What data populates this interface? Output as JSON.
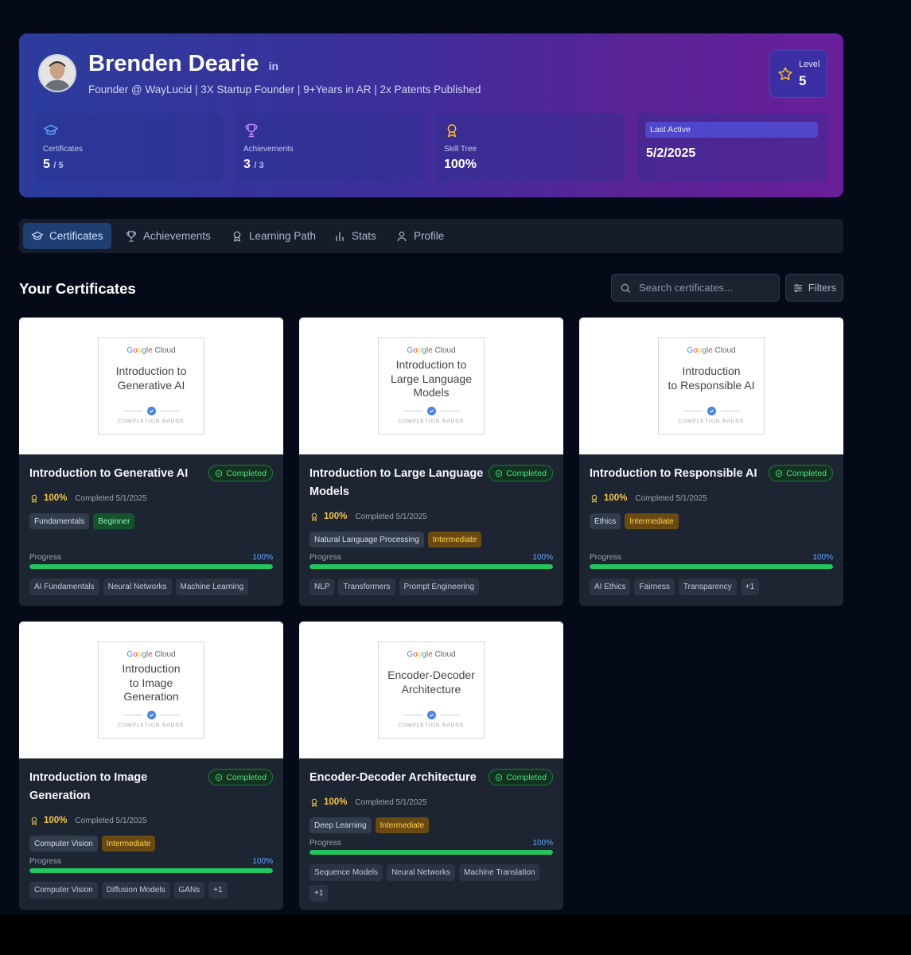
{
  "profile": {
    "name": "Brenden Dearie",
    "tagline": "Founder @ WayLucid | 3X Startup Founder | 9+Years in AR | 2x Patents Published",
    "linkedin_icon": "in",
    "level_label": "Level",
    "level_value": "5"
  },
  "stats": [
    {
      "label": "Certificates",
      "value": "5",
      "total": "/ 5",
      "icon": "graduation-cap-icon"
    },
    {
      "label": "Achievements",
      "value": "3",
      "total": "/ 3",
      "icon": "trophy-icon"
    },
    {
      "label": "Skill Tree",
      "value": "100%",
      "icon": "award-icon"
    },
    {
      "label": "Last Active",
      "value": "5/2/2025"
    }
  ],
  "tabs": [
    {
      "label": "Certificates",
      "icon": "graduation-cap-icon",
      "active": true
    },
    {
      "label": "Achievements",
      "icon": "trophy-icon"
    },
    {
      "label": "Learning Path",
      "icon": "award-icon"
    },
    {
      "label": "Stats",
      "icon": "bar-chart-icon"
    },
    {
      "label": "Profile",
      "icon": "user-icon"
    }
  ],
  "section": {
    "title": "Your Certificates",
    "search_placeholder": "Search certificates...",
    "filters_label": "Filters"
  },
  "badge_common": {
    "google": [
      "G",
      "o",
      "o",
      "g",
      "l",
      "e"
    ],
    "cloud": " Cloud",
    "caption": "COMPLETION BADGE"
  },
  "colors": {
    "google_blue": "#4285F4",
    "google_red": "#EA4335",
    "google_yellow": "#FBBC05",
    "google_green": "#34A853",
    "accent_green": "#22c55e"
  },
  "certificates": [
    {
      "badge_lines": [
        "Introduction to",
        "Generative AI"
      ],
      "title": "Introduction to Generative AI",
      "status": "Completed",
      "percent": "100%",
      "completed": "Completed 5/1/2025",
      "tags": [
        {
          "label": "Fundamentals",
          "kind": "plain"
        },
        {
          "label": "Beginner",
          "kind": "beginner"
        }
      ],
      "progress_label": "Progress",
      "progress_value": "100%",
      "progress_fraction": 1.0,
      "skills": [
        "AI Fundamentals",
        "Neural Networks",
        "Machine Learning"
      ]
    },
    {
      "badge_lines": [
        "Introduction to",
        "Large Language",
        "Models"
      ],
      "title": "Introduction to Large Language Models",
      "status": "Completed",
      "percent": "100%",
      "completed": "Completed 5/1/2025",
      "tags": [
        {
          "label": "Natural Language Processing",
          "kind": "plain"
        },
        {
          "label": "Intermediate",
          "kind": "intermediate"
        }
      ],
      "progress_label": "Progress",
      "progress_value": "100%",
      "progress_fraction": 1.0,
      "skills": [
        "NLP",
        "Transformers",
        "Prompt Engineering"
      ]
    },
    {
      "badge_lines": [
        "Introduction",
        "to Responsible AI"
      ],
      "title": "Introduction to Responsible AI",
      "status": "Completed",
      "percent": "100%",
      "completed": "Completed 5/1/2025",
      "tags": [
        {
          "label": "Ethics",
          "kind": "plain"
        },
        {
          "label": "Intermediate",
          "kind": "intermediate"
        }
      ],
      "progress_label": "Progress",
      "progress_value": "100%",
      "progress_fraction": 1.0,
      "skills": [
        "AI Ethics",
        "Fairness",
        "Transparency",
        "+1"
      ]
    },
    {
      "badge_lines": [
        "Introduction",
        "to Image",
        "Generation"
      ],
      "title": "Introduction to Image Generation",
      "status": "Completed",
      "percent": "100%",
      "completed": "Completed 5/1/2025",
      "tags": [
        {
          "label": "Computer Vision",
          "kind": "plain"
        },
        {
          "label": "Intermediate",
          "kind": "intermediate"
        }
      ],
      "progress_label": "Progress",
      "progress_value": "100%",
      "progress_fraction": 1.0,
      "skills": [
        "Computer Vision",
        "Diffusion Models",
        "GANs",
        "+1"
      ]
    },
    {
      "badge_lines": [
        "Encoder-Decoder",
        "Architecture"
      ],
      "title": "Encoder-Decoder Architecture",
      "status": "Completed",
      "percent": "100%",
      "completed": "Completed 5/1/2025",
      "tags": [
        {
          "label": "Deep Learning",
          "kind": "plain"
        },
        {
          "label": "Intermediate",
          "kind": "intermediate"
        }
      ],
      "progress_label": "Progress",
      "progress_value": "100%",
      "progress_fraction": 1.0,
      "skills": [
        "Sequence Models",
        "Neural Networks",
        "Machine Translation",
        "+1"
      ]
    }
  ]
}
